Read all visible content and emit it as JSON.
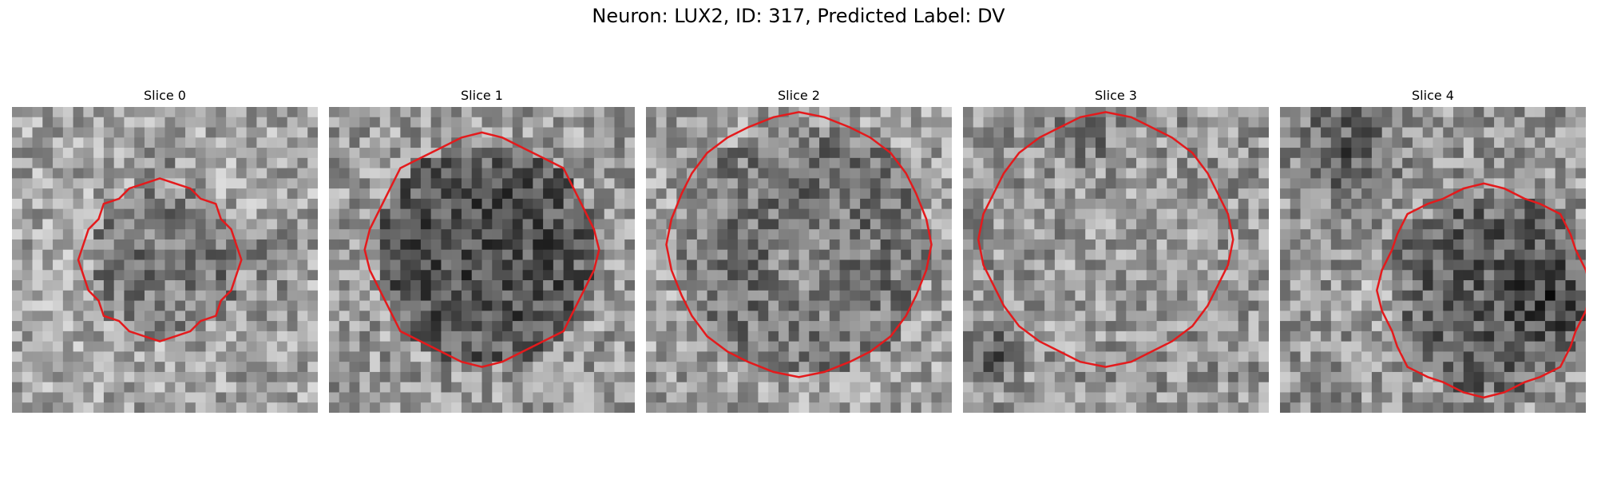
{
  "figure": {
    "title": "Neuron: LUX2, ID: 317, Predicted Label: DV",
    "contour_color": "#e41a1c",
    "colormap": "gray",
    "slices": [
      {
        "label": "Slice 0"
      },
      {
        "label": "Slice 1"
      },
      {
        "label": "Slice 2"
      },
      {
        "label": "Slice 3"
      },
      {
        "label": "Slice 4"
      }
    ]
  }
}
